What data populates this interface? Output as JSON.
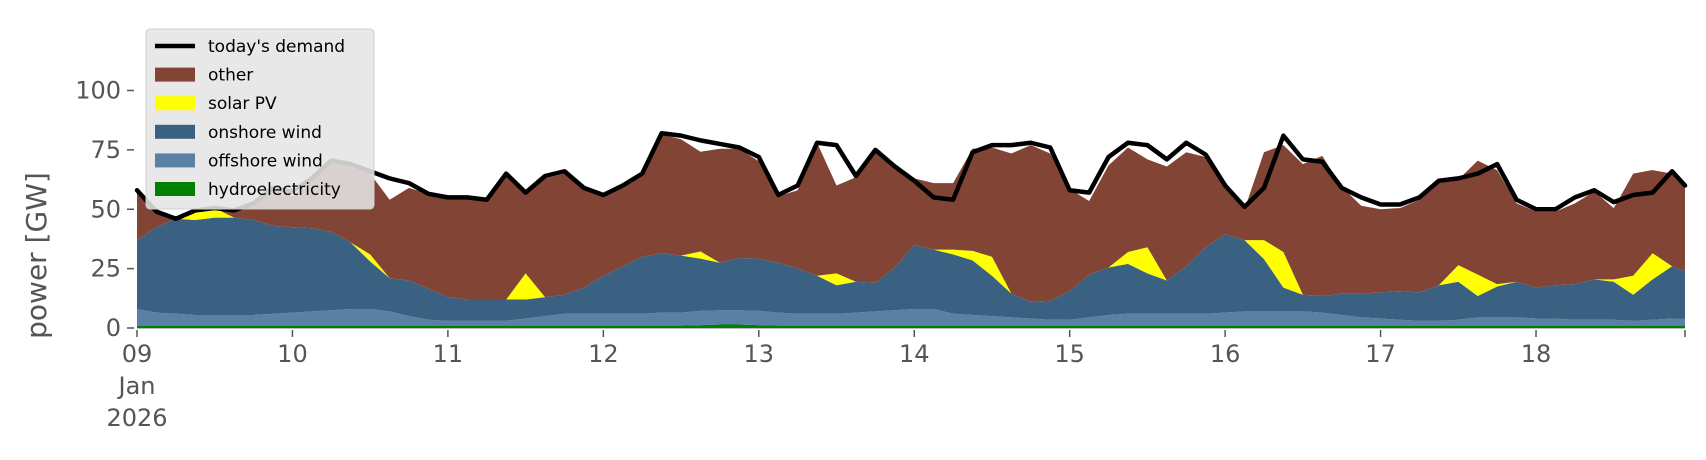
{
  "chart_data": {
    "type": "area",
    "title": "",
    "ylabel": "power [GW]",
    "xlabel": "",
    "ylim": [
      0,
      120
    ],
    "yticks": [
      0,
      25,
      50,
      75,
      100
    ],
    "xlim": [
      "2026-01-09T00:00",
      "2026-01-18T23:00"
    ],
    "xticks": [
      {
        "date": "2026-01-09",
        "label": "09",
        "sublabels": [
          "Jan",
          "2026"
        ]
      },
      {
        "date": "2026-01-10",
        "label": "10"
      },
      {
        "date": "2026-01-11",
        "label": "11"
      },
      {
        "date": "2026-01-12",
        "label": "12"
      },
      {
        "date": "2026-01-13",
        "label": "13"
      },
      {
        "date": "2026-01-14",
        "label": "14"
      },
      {
        "date": "2026-01-15",
        "label": "15"
      },
      {
        "date": "2026-01-16",
        "label": "16"
      },
      {
        "date": "2026-01-17",
        "label": "17"
      },
      {
        "date": "2026-01-18",
        "label": "18"
      }
    ],
    "grid": false,
    "legend_position": "top-left",
    "x": [
      "2026-01-09T00:00",
      "2026-01-09T03:00",
      "2026-01-09T06:00",
      "2026-01-09T09:00",
      "2026-01-09T12:00",
      "2026-01-09T15:00",
      "2026-01-09T18:00",
      "2026-01-09T21:00",
      "2026-01-10T00:00",
      "2026-01-10T03:00",
      "2026-01-10T06:00",
      "2026-01-10T09:00",
      "2026-01-10T12:00",
      "2026-01-10T15:00",
      "2026-01-10T18:00",
      "2026-01-10T21:00",
      "2026-01-11T00:00",
      "2026-01-11T03:00",
      "2026-01-11T06:00",
      "2026-01-11T09:00",
      "2026-01-11T12:00",
      "2026-01-11T15:00",
      "2026-01-11T18:00",
      "2026-01-11T21:00",
      "2026-01-12T00:00",
      "2026-01-12T03:00",
      "2026-01-12T06:00",
      "2026-01-12T09:00",
      "2026-01-12T12:00",
      "2026-01-12T15:00",
      "2026-01-12T18:00",
      "2026-01-12T21:00",
      "2026-01-13T00:00",
      "2026-01-13T03:00",
      "2026-01-13T06:00",
      "2026-01-13T09:00",
      "2026-01-13T12:00",
      "2026-01-13T15:00",
      "2026-01-13T18:00",
      "2026-01-13T21:00",
      "2026-01-14T00:00",
      "2026-01-14T03:00",
      "2026-01-14T06:00",
      "2026-01-14T09:00",
      "2026-01-14T12:00",
      "2026-01-14T15:00",
      "2026-01-14T18:00",
      "2026-01-14T21:00",
      "2026-01-15T00:00",
      "2026-01-15T03:00",
      "2026-01-15T06:00",
      "2026-01-15T09:00",
      "2026-01-15T12:00",
      "2026-01-15T15:00",
      "2026-01-15T18:00",
      "2026-01-15T21:00",
      "2026-01-16T00:00",
      "2026-01-16T03:00",
      "2026-01-16T06:00",
      "2026-01-16T09:00",
      "2026-01-16T12:00",
      "2026-01-16T15:00",
      "2026-01-16T18:00",
      "2026-01-16T21:00",
      "2026-01-17T00:00",
      "2026-01-17T03:00",
      "2026-01-17T06:00",
      "2026-01-17T09:00",
      "2026-01-17T12:00",
      "2026-01-17T15:00",
      "2026-01-17T18:00",
      "2026-01-17T21:00",
      "2026-01-18T00:00",
      "2026-01-18T03:00",
      "2026-01-18T06:00",
      "2026-01-18T09:00",
      "2026-01-18T12:00",
      "2026-01-18T15:00",
      "2026-01-18T18:00",
      "2026-01-18T21:00",
      "2026-01-18T23:00"
    ],
    "series": [
      {
        "name": "hydroelectricity",
        "color": "#008000",
        "values": [
          1.0,
          1.0,
          1.0,
          1.0,
          1.0,
          1.0,
          1.0,
          1.0,
          1.0,
          1.0,
          1.0,
          1.0,
          1.0,
          1.0,
          1.0,
          1.0,
          1.0,
          1.0,
          1.0,
          1.0,
          1.0,
          1.0,
          1.0,
          1.0,
          1.0,
          1.0,
          1.0,
          1.0,
          1.0,
          1.2,
          1.5,
          1.5,
          1.2,
          1.0,
          1.0,
          1.0,
          1.0,
          1.0,
          1.0,
          1.0,
          1.0,
          1.0,
          1.0,
          1.0,
          1.0,
          1.0,
          1.0,
          1.0,
          1.0,
          1.0,
          1.0,
          1.0,
          1.0,
          1.0,
          1.0,
          1.0,
          1.0,
          1.0,
          1.0,
          1.0,
          1.0,
          1.0,
          1.0,
          1.0,
          1.0,
          1.0,
          1.0,
          1.0,
          1.0,
          1.0,
          1.0,
          1.0,
          1.0,
          1.0,
          1.0,
          1.0,
          1.0,
          1.0,
          1.0,
          1.0,
          1.0
        ]
      },
      {
        "name": "offshore wind",
        "color": "#5a80a5",
        "values": [
          7.0,
          5.5,
          5.0,
          4.5,
          4.5,
          4.5,
          4.5,
          5.0,
          5.5,
          6.0,
          6.5,
          7.0,
          7.0,
          6.0,
          4.0,
          2.5,
          2.0,
          2.0,
          2.0,
          2.0,
          3.0,
          4.0,
          5.0,
          5.0,
          5.0,
          5.0,
          5.0,
          5.5,
          5.5,
          6.0,
          6.0,
          6.0,
          6.0,
          5.5,
          5.0,
          5.0,
          5.0,
          5.5,
          6.0,
          6.5,
          7.0,
          7.0,
          5.0,
          4.5,
          4.0,
          3.5,
          3.0,
          2.5,
          2.5,
          3.5,
          4.5,
          5.0,
          5.0,
          5.0,
          5.0,
          5.0,
          5.5,
          6.0,
          6.0,
          6.0,
          6.0,
          5.5,
          4.5,
          3.5,
          3.0,
          2.5,
          2.0,
          2.0,
          2.5,
          3.5,
          3.5,
          3.5,
          3.0,
          3.0,
          2.5,
          2.5,
          2.5,
          2.0,
          2.5,
          3.0,
          3.0
        ]
      },
      {
        "name": "onshore wind",
        "color": "#3b6182",
        "values": [
          29,
          36,
          40,
          40,
          41,
          41,
          40,
          37,
          36,
          35,
          33,
          28,
          20,
          14,
          15,
          13,
          10,
          9,
          9,
          9,
          8,
          8,
          8,
          11,
          16,
          20,
          24,
          25,
          24,
          22,
          20,
          22,
          22,
          21,
          19,
          16,
          12,
          13,
          12,
          18,
          27,
          25,
          25,
          23,
          17,
          10,
          7,
          8,
          12,
          18,
          20,
          21,
          17,
          14,
          20,
          28,
          33,
          30,
          22,
          10,
          7,
          7,
          9,
          10,
          11,
          12,
          12,
          15,
          16,
          9,
          13,
          15,
          13,
          14,
          15,
          17,
          16,
          11,
          17,
          22,
          20
        ]
      },
      {
        "name": "solar PV",
        "color": "#ffff00",
        "values": [
          0,
          0,
          0,
          4,
          4,
          0,
          0,
          0,
          0,
          0,
          0,
          0,
          3,
          0,
          0,
          0,
          0,
          0,
          0,
          0,
          11,
          0,
          0,
          0,
          0,
          0,
          0,
          0,
          0,
          3,
          0,
          0,
          0,
          0,
          0,
          0,
          5,
          0,
          0,
          0,
          0,
          0,
          2,
          4,
          8,
          0,
          0,
          0,
          0,
          0,
          0,
          5,
          11,
          0,
          0,
          0,
          0,
          0,
          8,
          15,
          0,
          0,
          0,
          0,
          0,
          0,
          0,
          0,
          7,
          9,
          1,
          0,
          0,
          0,
          0,
          0,
          1,
          8,
          11,
          0,
          0
        ]
      },
      {
        "name": "other",
        "color": "#824434",
        "values": [
          21,
          6,
          0,
          0,
          0,
          3,
          7,
          16,
          13,
          20,
          29,
          32,
          34,
          33,
          39,
          40,
          42,
          43,
          42,
          53,
          34,
          50,
          51,
          42,
          34,
          33,
          34,
          50,
          49,
          42,
          48,
          46,
          41,
          28,
          33,
          56,
          37,
          44,
          56,
          42,
          28,
          28,
          28,
          43,
          46,
          59,
          66,
          62,
          43,
          31,
          43,
          44,
          37,
          48,
          48,
          38,
          20,
          13,
          37,
          45,
          55,
          59,
          45,
          37,
          35,
          35,
          39,
          43,
          36,
          48,
          48,
          33,
          32,
          31,
          34,
          37,
          30,
          43,
          35,
          39,
          35
        ]
      },
      {
        "name": "today's demand",
        "color": "#000000",
        "kind": "line",
        "values": [
          58,
          49,
          46,
          49.5,
          50.5,
          49.5,
          52.5,
          59,
          57.5,
          63,
          70.5,
          69,
          66,
          63,
          61,
          56.5,
          55,
          55,
          54,
          65,
          57,
          64,
          66,
          59,
          56,
          60,
          65,
          82,
          81,
          79,
          77.5,
          76,
          72,
          56,
          60,
          78,
          77,
          64,
          75,
          68,
          62,
          55,
          54,
          74,
          77,
          77,
          78,
          76,
          58,
          57,
          72,
          78,
          77,
          71,
          78,
          73,
          60,
          51,
          59,
          81,
          71,
          70,
          59,
          55,
          52,
          52,
          55,
          62,
          63,
          65,
          69,
          54,
          50,
          50,
          55,
          58,
          53,
          56,
          57,
          66,
          60
        ]
      }
    ]
  }
}
